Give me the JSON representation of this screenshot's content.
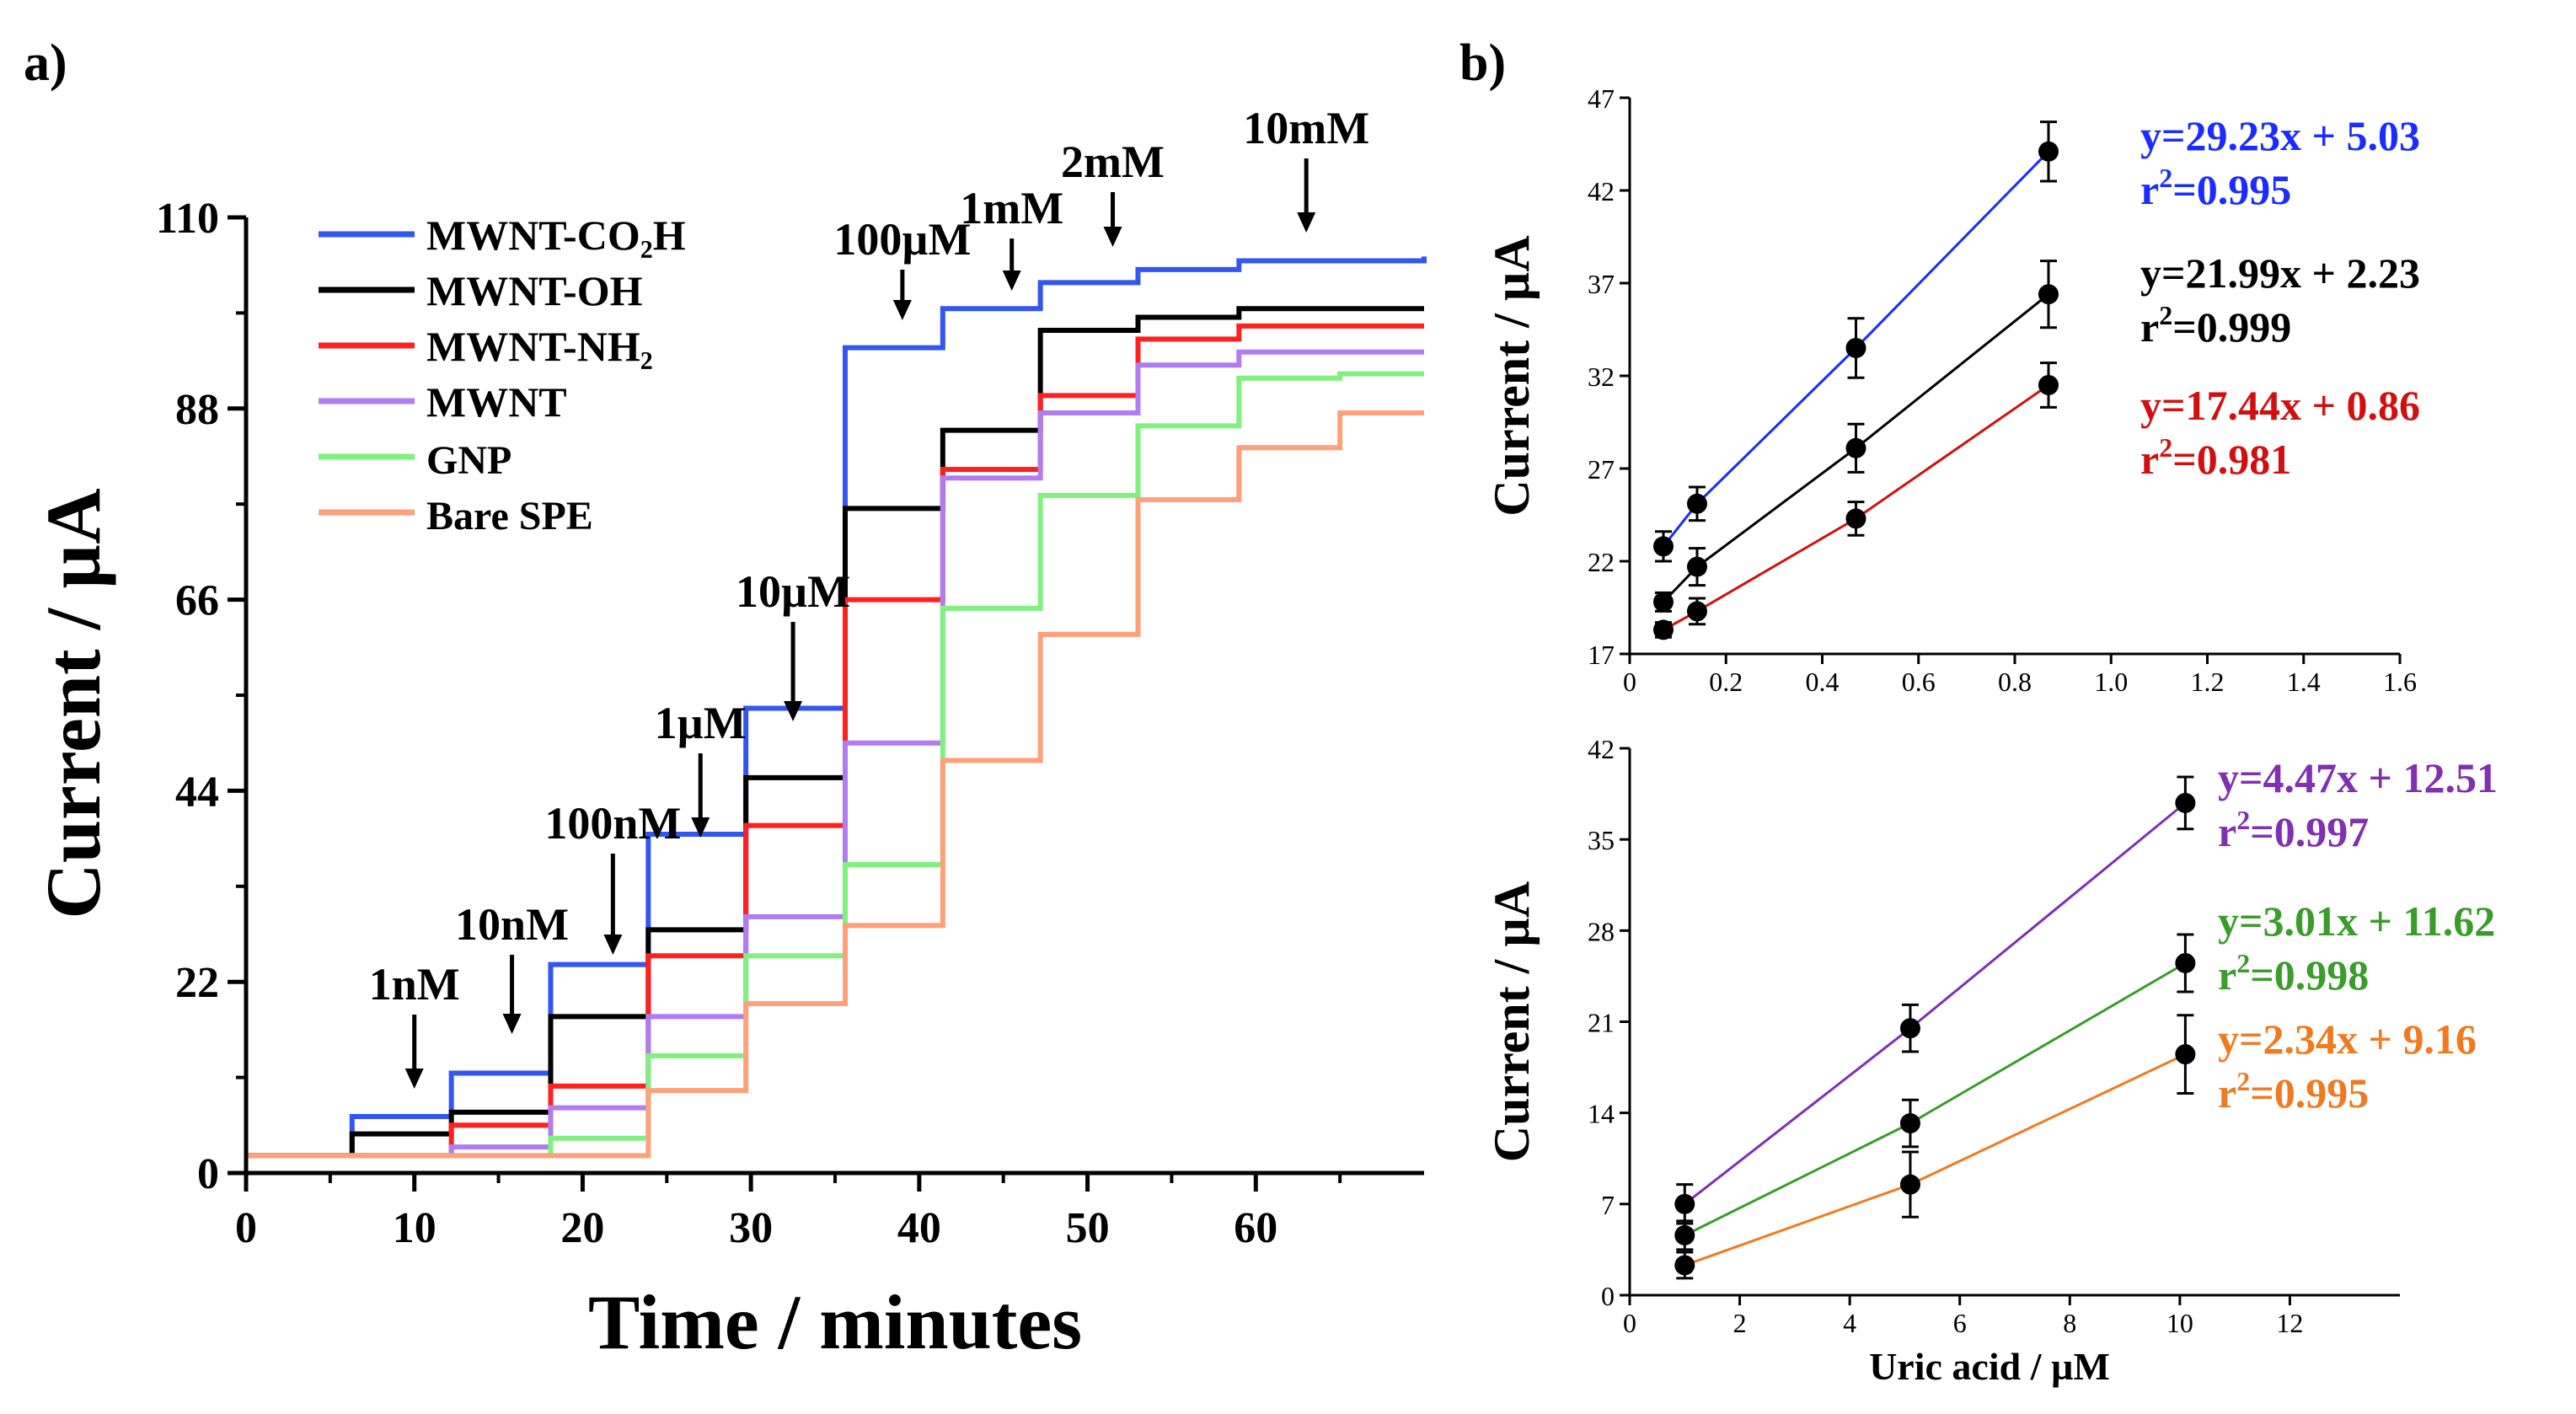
{
  "panel_labels": [
    "a)",
    "b)"
  ],
  "chart_data": [
    {
      "type": "line",
      "step": true,
      "xlabel": "Time / minutes",
      "ylabel": "Current / µA",
      "xlim": [
        0,
        70
      ],
      "ylim": [
        0,
        110
      ],
      "xticks": [
        "0",
        "10",
        "20",
        "30",
        "40",
        "50",
        "60"
      ],
      "yticks": [
        "0",
        "22",
        "44",
        "66",
        "88",
        "110"
      ],
      "legend_position": "top-left",
      "series": [
        {
          "name": "MWNT-CO₂H",
          "color": "#3355f0",
          "x": [
            0,
            6.3,
            12.2,
            18.1,
            23.9,
            29.7,
            35.6,
            41.4,
            47.2,
            53,
            59,
            70
          ],
          "values": [
            2,
            6.5,
            11.5,
            24,
            39,
            53.5,
            95,
            99.5,
            102.5,
            104,
            105,
            105.5
          ]
        },
        {
          "name": "MWNT-OH",
          "color": "#000000",
          "x": [
            0,
            6.3,
            12.2,
            18.1,
            23.9,
            29.7,
            35.6,
            41.4,
            47.2,
            53,
            59,
            70
          ],
          "values": [
            2,
            4.5,
            7,
            18,
            28,
            45.5,
            76.5,
            85.5,
            97,
            98.5,
            99.5,
            99.5
          ]
        },
        {
          "name": "MWNT-NH₂",
          "color": "#ff2020",
          "x": [
            0,
            12.2,
            18.1,
            23.9,
            29.7,
            35.6,
            41.4,
            47.2,
            53,
            59,
            70
          ],
          "values": [
            2,
            5.5,
            10,
            25,
            40,
            66,
            81,
            89.5,
            96,
            97.5,
            97.5
          ]
        },
        {
          "name": "MWNT",
          "color": "#b07cf0",
          "x": [
            0,
            12.2,
            18.1,
            23.9,
            29.7,
            35.6,
            41.4,
            47.2,
            53,
            59,
            70
          ],
          "values": [
            2,
            3,
            7.5,
            18,
            29.5,
            49.5,
            80,
            87.5,
            93,
            94.5,
            94.5
          ]
        },
        {
          "name": "GNP",
          "color": "#80f080",
          "x": [
            0,
            18.1,
            23.9,
            29.7,
            35.6,
            41.4,
            47.2,
            53,
            59,
            65,
            70
          ],
          "values": [
            2,
            4,
            13.5,
            25,
            35.5,
            65,
            78,
            86,
            91.5,
            92,
            92
          ]
        },
        {
          "name": "Bare SPE",
          "color": "#ffa07a",
          "x": [
            0,
            23.9,
            29.7,
            35.6,
            41.4,
            47.2,
            53,
            59,
            65,
            70
          ],
          "values": [
            2,
            9.5,
            19.5,
            28.5,
            47.5,
            62,
            77.5,
            83.5,
            87.5,
            87.5
          ]
        }
      ],
      "annotations": [
        {
          "text": "1nM",
          "x": 10
        },
        {
          "text": "10nM",
          "x": 15.8
        },
        {
          "text": "100nM",
          "x": 21.8
        },
        {
          "text": "1µM",
          "x": 27
        },
        {
          "text": "10µM",
          "x": 32.5
        },
        {
          "text": "100µM",
          "x": 39
        },
        {
          "text": "1mM",
          "x": 45.5
        },
        {
          "text": "2mM",
          "x": 51.5
        },
        {
          "text": "10mM",
          "x": 63
        }
      ]
    },
    {
      "type": "scatter",
      "with_fit": true,
      "ylabel": "Current / µA",
      "xlim": [
        0,
        1.6
      ],
      "ylim": [
        17,
        47
      ],
      "xticks": [
        "0",
        "0.2",
        "0.4",
        "0.6",
        "0.8",
        "1.0",
        "1.2",
        "1.4",
        "1.6"
      ],
      "yticks": [
        "17",
        "22",
        "27",
        "32",
        "37",
        "42",
        "47"
      ],
      "series": [
        {
          "color": "#1a2cff",
          "x": [
            0.07,
            0.14,
            0.47,
            0.87
          ],
          "values": [
            22.8,
            25.1,
            33.5,
            44.1
          ],
          "errors": [
            0.8,
            0.9,
            1.6,
            1.6
          ],
          "equation": "y=29.23x + 5.03",
          "r2": "=0.995"
        },
        {
          "color": "#000000",
          "x": [
            0.07,
            0.14,
            0.47,
            0.87
          ],
          "values": [
            19.8,
            21.7,
            28.1,
            36.4
          ],
          "errors": [
            0.5,
            1.0,
            1.3,
            1.8
          ],
          "equation": "y=21.99x + 2.23",
          "r2": "=0.999"
        },
        {
          "color": "#d01010",
          "x": [
            0.07,
            0.14,
            0.47,
            0.87
          ],
          "values": [
            18.3,
            19.3,
            24.3,
            31.5
          ],
          "errors": [
            0.4,
            0.7,
            0.9,
            1.2
          ],
          "equation": "y=17.44x + 0.86",
          "r2": "=0.981"
        }
      ]
    },
    {
      "type": "scatter",
      "with_fit": true,
      "xlabel": "Uric acid / µM",
      "ylabel": "Current / µA",
      "xlim": [
        0,
        14
      ],
      "ylim": [
        0,
        42
      ],
      "xticks": [
        "0",
        "2",
        "4",
        "6",
        "8",
        "10",
        "12"
      ],
      "yticks": [
        "0",
        "7",
        "14",
        "21",
        "28",
        "35",
        "42"
      ],
      "series": [
        {
          "color": "#8030b0",
          "x": [
            1,
            5.1,
            10.1
          ],
          "values": [
            7,
            20.5,
            37.8
          ],
          "errors": [
            1.5,
            1.8,
            2.0
          ],
          "equation": "y=4.47x + 12.51",
          "r2": "=0.997"
        },
        {
          "color": "#3a9c2a",
          "x": [
            1,
            5.1,
            10.1
          ],
          "values": [
            4.6,
            13.2,
            25.5
          ],
          "errors": [
            1.1,
            1.8,
            2.2
          ],
          "equation": "y=3.01x + 11.62",
          "r2": "=0.998"
        },
        {
          "color": "#f07a20",
          "x": [
            1,
            5.1,
            10.1
          ],
          "values": [
            2.3,
            8.5,
            18.5
          ],
          "errors": [
            1.0,
            2.5,
            3.0
          ],
          "equation": "y=2.34x + 9.16",
          "r2": "=0.995"
        }
      ]
    }
  ]
}
